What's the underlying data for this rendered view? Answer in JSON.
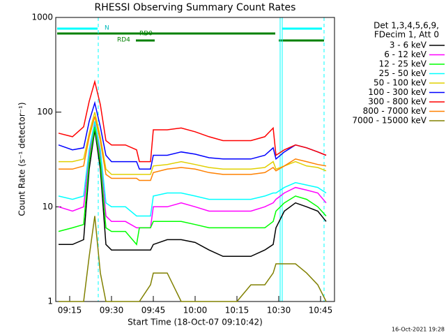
{
  "chart_data": {
    "type": "line",
    "title": "RHESSI Observing Summary Count Rates",
    "x_label": "Start Time (18-Oct-07 09:10:42)",
    "y_label": "Count Rate (s⁻¹ detector⁻¹)",
    "legend_header": [
      "Det 1,3,4,5,6,9,",
      "FDecim 1, Att 0"
    ],
    "footer": "16-Oct-2021 19:28",
    "annotations": [
      "N",
      "RD0",
      "RD4"
    ],
    "y_scale": "log",
    "xlim": [
      "09:10",
      "10:50"
    ],
    "xticks": [
      "09:15",
      "09:30",
      "09:45",
      "10:00",
      "10:15",
      "10:30",
      "10:45"
    ],
    "ylim": [
      1,
      1000
    ],
    "yticks": [
      1,
      10,
      100,
      1000
    ],
    "x": [
      "09:11",
      "09:16",
      "09:20",
      "09:22",
      "09:24",
      "09:26",
      "09:28",
      "09:30",
      "09:35",
      "09:39",
      "09:40",
      "09:44",
      "09:45",
      "09:50",
      "09:55",
      "10:00",
      "10:05",
      "10:10",
      "10:15",
      "10:20",
      "10:25",
      "10:28",
      "10:29",
      "10:32",
      "10:36",
      "10:40",
      "10:44",
      "10:47"
    ],
    "series": [
      {
        "name": "3 - 6 keV",
        "color": "#000000",
        "values": [
          4,
          4,
          4.5,
          25,
          65,
          25,
          4,
          3.5,
          3.5,
          3.5,
          3.5,
          3.5,
          4,
          4.5,
          4.5,
          4.2,
          3.5,
          3,
          3,
          3,
          3.5,
          4,
          6,
          9,
          11,
          10,
          9,
          7
        ]
      },
      {
        "name": "6 - 12 keV",
        "color": "#ff00ff",
        "values": [
          10,
          9,
          10,
          35,
          75,
          35,
          8,
          7,
          7,
          6,
          6,
          6,
          10,
          10,
          11,
          10,
          9,
          9,
          9,
          9,
          10,
          11,
          12,
          14,
          16,
          15,
          14,
          11
        ]
      },
      {
        "name": "12 - 25 keV",
        "color": "#00ff00",
        "values": [
          5.5,
          6,
          6.5,
          30,
          70,
          30,
          6,
          5.5,
          5.5,
          4,
          6,
          6,
          7,
          7,
          7,
          6.5,
          6,
          6,
          6,
          6,
          6,
          7,
          9,
          11,
          13,
          12,
          10,
          8
        ]
      },
      {
        "name": "25 - 50 keV",
        "color": "#00ffff",
        "values": [
          13,
          12,
          13,
          40,
          80,
          40,
          11,
          10,
          10,
          8,
          8,
          8,
          13,
          14,
          14,
          13,
          12,
          12,
          12,
          12,
          13,
          14,
          14,
          16,
          18,
          17,
          16,
          14
        ]
      },
      {
        "name": "50 - 100 keV",
        "color": "#e0d000",
        "values": [
          30,
          30,
          32,
          60,
          100,
          55,
          25,
          22,
          22,
          22,
          22,
          22,
          27,
          28,
          30,
          28,
          26,
          25,
          25,
          25,
          26,
          30,
          25,
          27,
          30,
          27,
          26,
          24
        ]
      },
      {
        "name": "100 - 300 keV",
        "color": "#0000ff",
        "values": [
          45,
          40,
          42,
          80,
          125,
          70,
          35,
          30,
          30,
          30,
          25,
          25,
          35,
          35,
          38,
          36,
          33,
          32,
          32,
          32,
          35,
          42,
          32,
          38,
          45,
          42,
          38,
          35
        ]
      },
      {
        "name": "300 - 800 keV",
        "color": "#ff0000",
        "values": [
          60,
          55,
          70,
          130,
          210,
          120,
          50,
          45,
          45,
          40,
          30,
          30,
          65,
          65,
          68,
          62,
          55,
          50,
          50,
          50,
          55,
          68,
          35,
          40,
          45,
          42,
          38,
          35
        ]
      },
      {
        "name": "800 - 7000 keV",
        "color": "#ff8000",
        "values": [
          25,
          25,
          27,
          55,
          90,
          50,
          22,
          20,
          20,
          20,
          19,
          19,
          23,
          25,
          26,
          25,
          23,
          22,
          22,
          22,
          23,
          26,
          24,
          27,
          32,
          30,
          28,
          27
        ]
      },
      {
        "name": "7000 - 15000 keV",
        "color": "#808000",
        "values": [
          1,
          1,
          1,
          3,
          8,
          2,
          1,
          1,
          1,
          1,
          1,
          1.5,
          2,
          2,
          1,
          1,
          1,
          1,
          1,
          1.5,
          1.5,
          2,
          2.5,
          2.5,
          2.5,
          2,
          1.5,
          1
        ]
      }
    ]
  }
}
